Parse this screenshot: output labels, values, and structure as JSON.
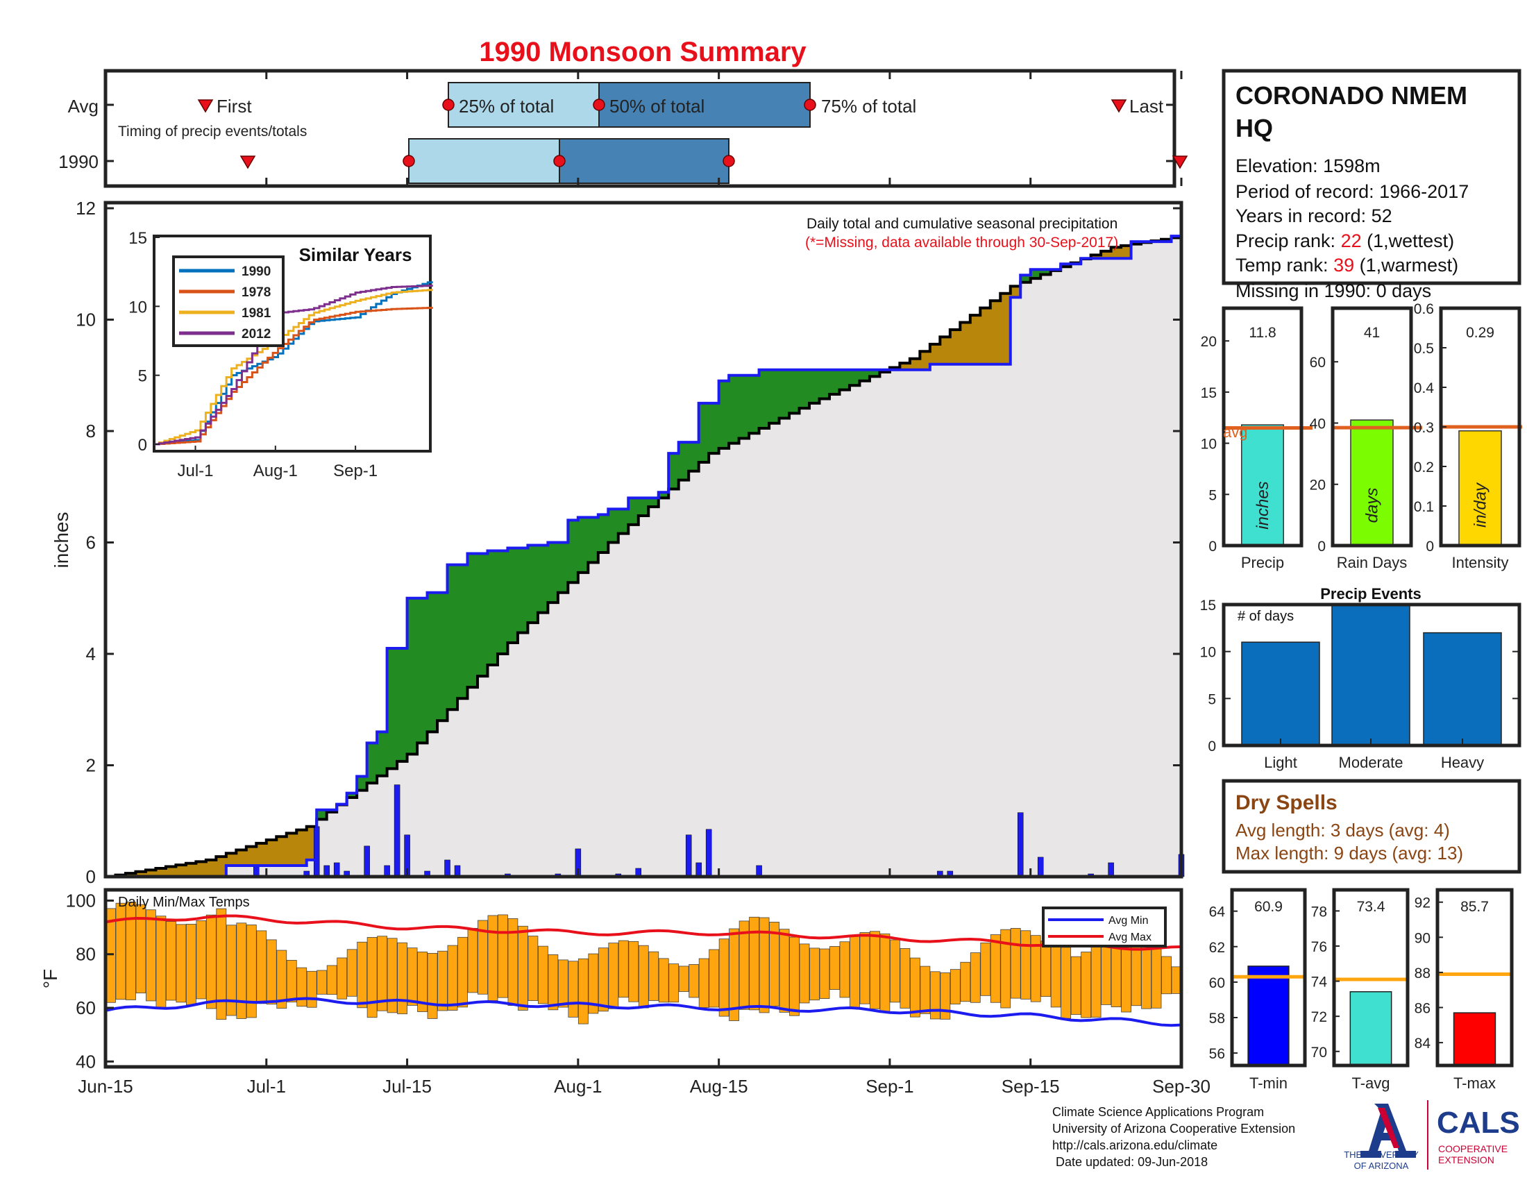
{
  "title": "1990 Monsoon Summary",
  "timing": {
    "row_labels": [
      "Avg",
      "1990"
    ],
    "caption": "Timing of precip events/totals",
    "first_label": "First",
    "last_label": "Last",
    "pct25_label": "25% of total",
    "pct50_label": "50% of total",
    "pct75_label": "75% of total"
  },
  "station": {
    "name_line1": "CORONADO NMEM",
    "name_line2": "HQ",
    "elevation": "Elevation: 1598m",
    "period": "Period of record: 1966-2017",
    "years": "Years in record: 52",
    "precip_rank_prefix": "Precip rank: ",
    "precip_rank_value": "22",
    "precip_rank_suffix": " (1,wettest)",
    "temp_rank_prefix": "Temp rank: ",
    "temp_rank_value": "39",
    "temp_rank_suffix": " (1,warmest)",
    "missing": "Missing in 1990: 0 days"
  },
  "main": {
    "ylabel": "inches",
    "annotation_line1": "Daily total and cumulative seasonal precipitation",
    "annotation_line2": "(*=Missing, data available through 30-Sep-2017)",
    "x_ticks": [
      "Jun-15",
      "Jul-1",
      "Jul-15",
      "Aug-1",
      "Aug-15",
      "Sep-1",
      "Sep-15",
      "Sep-30"
    ],
    "y_ticks": [
      "0",
      "2",
      "4",
      "6",
      "8",
      "10",
      "12"
    ]
  },
  "inset": {
    "title": "Similar Years",
    "y_ticks": [
      "0",
      "5",
      "10",
      "15"
    ],
    "x_ticks": [
      "Jul-1",
      "Aug-1",
      "Sep-1"
    ],
    "legend": [
      "1990",
      "1978",
      "1981",
      "2012"
    ]
  },
  "temps": {
    "label": "Daily Min/Max Temps",
    "ylabel": "°F",
    "y_ticks": [
      "40",
      "60",
      "80",
      "100"
    ],
    "legend_min": "Avg Min",
    "legend_max": "Avg Max"
  },
  "mini_bars": {
    "precip": {
      "label": "Precip",
      "value_text": "11.8",
      "unit": "inches",
      "y_ticks": [
        "0",
        "5",
        "10",
        "15",
        "20"
      ],
      "avg_label": "avg"
    },
    "rain_days": {
      "label": "Rain Days",
      "value_text": "41",
      "unit": "days",
      "y_ticks": [
        "0",
        "20",
        "40",
        "60"
      ]
    },
    "intensity": {
      "label": "Intensity",
      "value_text": "0.29",
      "unit": "in/day",
      "y_ticks": [
        "0",
        "0.1",
        "0.2",
        "0.3",
        "0.4",
        "0.5",
        "0.6"
      ]
    }
  },
  "precip_events": {
    "title": "Precip Events",
    "ylabel": "# of days",
    "y_ticks": [
      "0",
      "5",
      "10",
      "15"
    ],
    "categories": [
      "Light",
      "Moderate",
      "Heavy"
    ]
  },
  "dry_spells": {
    "title": "Dry Spells",
    "avg_length": "Avg length: 3 days (avg: 4)",
    "max_length": "Max length: 9 days (avg: 13)"
  },
  "temp_bars": {
    "tmin": {
      "label": "T-min",
      "value_text": "60.9",
      "y_ticks": [
        "56",
        "58",
        "60",
        "62",
        "64"
      ]
    },
    "tavg": {
      "label": "T-avg",
      "value_text": "73.4",
      "y_ticks": [
        "70",
        "72",
        "74",
        "76",
        "78"
      ]
    },
    "tmax": {
      "label": "T-max",
      "value_text": "85.7",
      "y_ticks": [
        "84",
        "86",
        "88",
        "90",
        "92"
      ]
    }
  },
  "footer": {
    "line1": "Climate Science Applications Program",
    "line2": "University of Arizona Cooperative Extension",
    "line3": "http://cals.arizona.edu/climate",
    "line4": " Date updated: 09-Jun-2018",
    "ua_logo_text1": "THE UNIVERSITY",
    "ua_logo_text2": "OF ARIZONA",
    "cals_logo_text": "CALS",
    "cals_sub1": "COOPERATIVE",
    "cals_sub2": "EXTENSION"
  },
  "colors": {
    "title": "#e8101a",
    "blue_line": "#1c1cf0",
    "above_avg": "#228b22",
    "below_avg": "#b8860b",
    "avg_fill": "#e8e6e6",
    "temp_bar": "#ffa510",
    "avg_line": "#e06020",
    "box_light": "#acd8ea",
    "box_dark": "#4682b4",
    "tmin": "#0000ff",
    "tavg": "#40e0d0",
    "tmax": "#ff0000",
    "precip_bar": "#40e0d0",
    "raindays_bar": "#7cfc00",
    "intensity_bar": "#ffd700",
    "events_bar": "#0a6ebd",
    "dry_spell_text": "#8b4513"
  },
  "chart_data": [
    {
      "type": "area",
      "title": "Daily total and cumulative seasonal precipitation",
      "ylabel": "inches",
      "ylim": [
        0,
        12
      ],
      "x_range": [
        "Jun-15",
        "Sep-30"
      ],
      "series": [
        {
          "name": "1990",
          "x": [
            "Jun-15",
            "Jun-24",
            "Jun-27",
            "Jul-5",
            "Jul-6",
            "Jul-8",
            "Jul-9",
            "Jul-10",
            "Jul-11",
            "Jul-12",
            "Jul-13",
            "Jul-15",
            "Jul-17",
            "Jul-19",
            "Jul-21",
            "Jul-22",
            "Jul-23",
            "Jul-25",
            "Jul-27",
            "Jul-29",
            "Jul-31",
            "Aug-1",
            "Aug-3",
            "Aug-4",
            "Aug-6",
            "Aug-9",
            "Aug-10",
            "Aug-11",
            "Aug-13",
            "Aug-15",
            "Aug-16",
            "Aug-19",
            "Aug-20",
            "Aug-25",
            "Aug-28",
            "Sep-1",
            "Sep-5",
            "Sep-6",
            "Sep-13",
            "Sep-14",
            "Sep-15",
            "Sep-18",
            "Sep-20",
            "Sep-25",
            "Sep-29",
            "Sep-30"
          ],
          "values": [
            0,
            0,
            0.2,
            0.3,
            1.2,
            1.3,
            1.5,
            1.8,
            2.4,
            2.6,
            4.1,
            5.0,
            5.1,
            5.6,
            5.8,
            5.8,
            5.85,
            5.9,
            5.95,
            6.0,
            6.4,
            6.45,
            6.5,
            6.6,
            6.8,
            6.9,
            7.6,
            7.8,
            8.5,
            8.9,
            9.0,
            9.1,
            9.1,
            9.1,
            9.1,
            9.1,
            9.2,
            9.2,
            10.4,
            10.8,
            10.9,
            11.0,
            11.1,
            11.4,
            11.5,
            11.8
          ]
        },
        {
          "name": "Avg",
          "x": [
            "Jun-15",
            "Jun-25",
            "Jul-5",
            "Jul-15",
            "Jul-25",
            "Aug-4",
            "Aug-14",
            "Aug-24",
            "Sep-3",
            "Sep-13",
            "Sep-23",
            "Sep-30"
          ],
          "values": [
            0,
            0.3,
            0.9,
            2.2,
            4.2,
            6.0,
            7.6,
            8.5,
            9.3,
            10.6,
            11.3,
            11.5
          ]
        }
      ],
      "daily_precip": {
        "x": [
          "Jun-30",
          "Jul-5",
          "Jul-6",
          "Jul-7",
          "Jul-8",
          "Jul-9",
          "Jul-11",
          "Jul-13",
          "Jul-14",
          "Jul-15",
          "Jul-17",
          "Jul-19",
          "Jul-20",
          "Jul-25",
          "Jul-30",
          "Aug-1",
          "Aug-5",
          "Aug-7",
          "Aug-12",
          "Aug-13",
          "Aug-14",
          "Aug-19",
          "Sep-6",
          "Sep-7",
          "Sep-14",
          "Sep-16",
          "Sep-21",
          "Sep-23",
          "Sep-30"
        ],
        "values": [
          0.2,
          0.1,
          0.9,
          0.2,
          0.25,
          0.1,
          0.55,
          0.2,
          1.65,
          0.75,
          0.1,
          0.3,
          0.2,
          0.05,
          0.05,
          0.5,
          0.05,
          0.15,
          0.75,
          0.25,
          0.85,
          0.2,
          0.1,
          0.1,
          1.15,
          0.35,
          0.05,
          0.25,
          0.4
        ]
      }
    },
    {
      "type": "line",
      "title": "Similar Years",
      "ylim": [
        0,
        15
      ],
      "x": [
        "Jun-15",
        "Jul-1",
        "Jul-15",
        "Aug-1",
        "Aug-15",
        "Sep-1",
        "Sep-15",
        "Sep-30"
      ],
      "series": [
        {
          "name": "1990",
          "values": [
            0,
            0.3,
            5.0,
            6.4,
            8.9,
            9.2,
            10.9,
            11.8
          ]
        },
        {
          "name": "1978",
          "values": [
            0,
            0.2,
            3.8,
            6.8,
            9.0,
            9.6,
            9.8,
            9.9
          ]
        },
        {
          "name": "1981",
          "values": [
            0,
            1.0,
            5.5,
            7.5,
            9.5,
            10.4,
            11.0,
            11.2
          ]
        },
        {
          "name": "2012",
          "values": [
            0,
            0.5,
            4.0,
            9.5,
            9.8,
            11.0,
            11.4,
            11.5
          ]
        }
      ]
    },
    {
      "type": "bar",
      "title": "Daily Min/Max Temps",
      "ylabel": "°F",
      "ylim": [
        40,
        100
      ],
      "avg_min": {
        "x": [
          "Jun-15",
          "Jul-1",
          "Jul-15",
          "Aug-1",
          "Aug-15",
          "Sep-1",
          "Sep-15",
          "Sep-30"
        ],
        "values": [
          59,
          63,
          62,
          61,
          60,
          59,
          57,
          54
        ]
      },
      "avg_max": {
        "x": [
          "Jun-15",
          "Jun-25",
          "Jul-1",
          "Jul-15",
          "Aug-1",
          "Aug-15",
          "Sep-1",
          "Sep-15",
          "Sep-30"
        ],
        "values": [
          92,
          94,
          93,
          90,
          88,
          88,
          86,
          84,
          82
        ]
      }
    },
    {
      "type": "bar",
      "categories": [
        "Precip",
        "Rain Days",
        "Intensity"
      ],
      "values": [
        11.8,
        41,
        0.29
      ],
      "averages": [
        11.5,
        38.5,
        0.3
      ]
    },
    {
      "type": "bar",
      "title": "Precip Events",
      "ylabel": "# of days",
      "ylim": [
        0,
        15
      ],
      "categories": [
        "Light",
        "Moderate",
        "Heavy"
      ],
      "values": [
        11,
        15,
        12
      ]
    },
    {
      "type": "bar",
      "categories": [
        "T-min",
        "T-avg",
        "T-max"
      ],
      "values": [
        60.9,
        73.4,
        85.7
      ],
      "averages": [
        60.3,
        74.1,
        87.9
      ]
    }
  ]
}
